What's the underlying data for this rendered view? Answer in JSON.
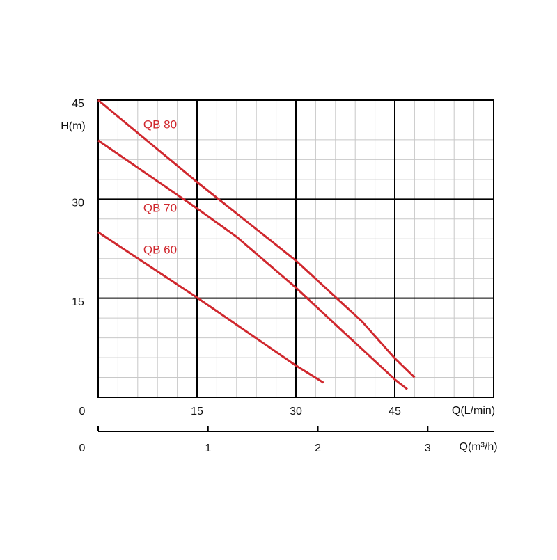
{
  "chart_data": {
    "type": "line",
    "ylabel": "H(m)",
    "xlabel": "Q(L/min)",
    "x2label": "Q(m³/h)",
    "xlim": [
      0,
      60
    ],
    "xticks": [
      0,
      15,
      30,
      45
    ],
    "ylim": [
      0,
      45
    ],
    "yticks": [
      15,
      30,
      45
    ],
    "x2lim": [
      0,
      3.6
    ],
    "x2ticks": [
      0,
      1,
      2,
      3
    ],
    "grid": true,
    "series": [
      {
        "name": "QB 80",
        "color": "#d0282e",
        "x": [
          0,
          15,
          30,
          36.3,
          40,
          45,
          48
        ],
        "values": [
          45,
          32.6,
          20.7,
          14.9,
          11.5,
          5.9,
          3.0
        ]
      },
      {
        "name": "QB 70",
        "color": "#d0282e",
        "x": [
          0,
          15,
          21,
          30,
          35.8,
          45,
          46.9
        ],
        "values": [
          38.9,
          28.6,
          24.3,
          16.6,
          11.2,
          2.7,
          1.2
        ]
      },
      {
        "name": "QB 60",
        "color": "#d0282e",
        "x": [
          0,
          15,
          30,
          34.2
        ],
        "values": [
          25,
          15.1,
          4.8,
          2.2
        ]
      }
    ]
  }
}
